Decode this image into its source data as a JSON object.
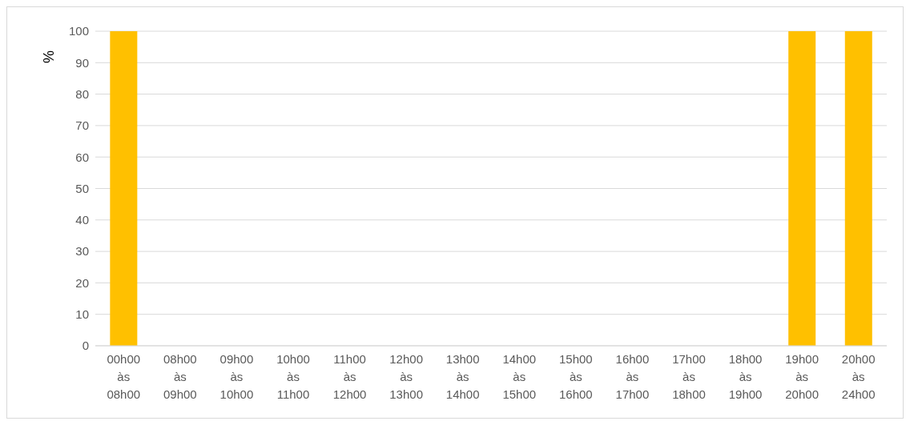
{
  "chart_data": {
    "type": "bar",
    "ylabel": "%",
    "categories": [
      "00h00 às 08h00",
      "08h00 às 09h00",
      "09h00 às 10h00",
      "10h00 às 11h00",
      "11h00 às 12h00",
      "12h00 às 13h00",
      "13h00 às 14h00",
      "14h00 às 15h00",
      "15h00 às 16h00",
      "16h00 às 17h00",
      "17h00 às 18h00",
      "18h00 às 19h00",
      "19h00 às 20h00",
      "20h00 às 24h00"
    ],
    "values": [
      100,
      0,
      0,
      0,
      0,
      0,
      0,
      0,
      0,
      0,
      0,
      0,
      100,
      100
    ],
    "color": "#ffc000",
    "ylim": [
      0,
      100
    ],
    "yticks": [
      0,
      10,
      20,
      30,
      40,
      50,
      60,
      70,
      80,
      90,
      100
    ],
    "grid": "y"
  }
}
